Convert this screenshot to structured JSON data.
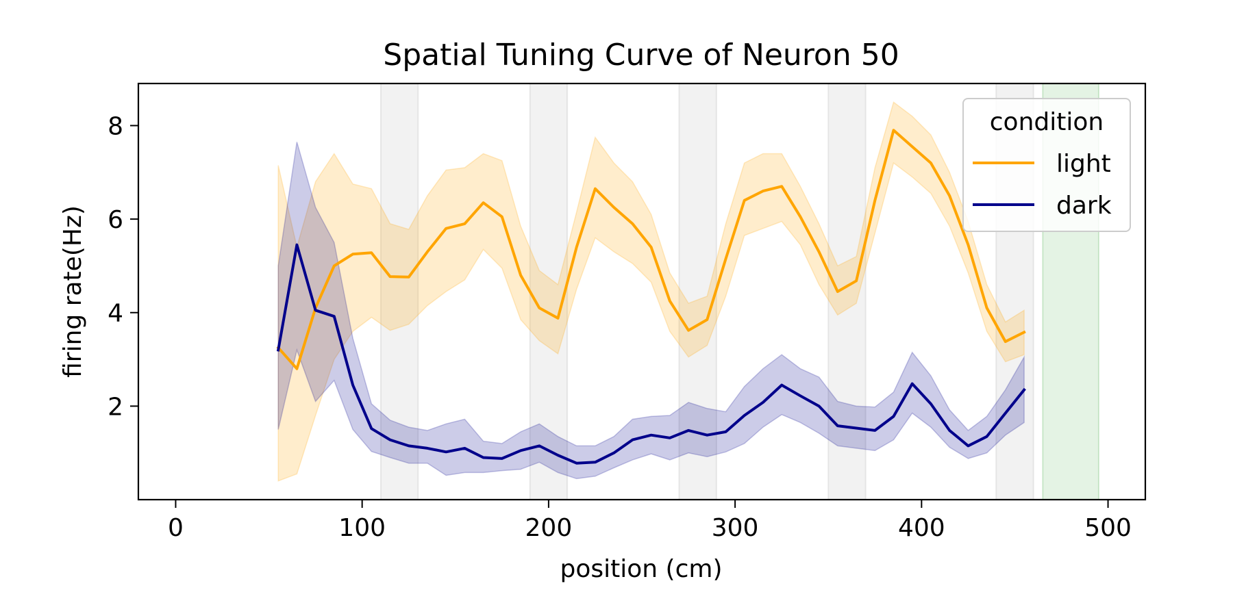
{
  "chart_data": {
    "type": "line",
    "title": "Spatial Tuning Curve of Neuron 50",
    "xlabel": "position (cm)",
    "ylabel": "firing rate(Hz)",
    "xlim": [
      -20,
      520
    ],
    "ylim": [
      0,
      8.9
    ],
    "xticks": [
      0,
      100,
      200,
      300,
      400,
      500
    ],
    "yticks": [
      2,
      4,
      6,
      8
    ],
    "grid": false,
    "legend": {
      "title": "condition",
      "placement": "upper-right"
    },
    "gray_regions": [
      [
        110,
        130
      ],
      [
        190,
        210
      ],
      [
        270,
        290
      ],
      [
        350,
        370
      ],
      [
        440,
        460
      ]
    ],
    "green_region": [
      465,
      495
    ],
    "colors": {
      "light": "#FFA500",
      "dark": "#00008B",
      "gray_region": "#808080",
      "green_region": "#2CA02C"
    },
    "series": [
      {
        "name": "light",
        "x": [
          55,
          65,
          75,
          85,
          95,
          105,
          115,
          125,
          135,
          145,
          155,
          165,
          175,
          185,
          195,
          205,
          215,
          225,
          235,
          245,
          255,
          265,
          275,
          285,
          295,
          305,
          315,
          325,
          335,
          345,
          355,
          365,
          375,
          385,
          395,
          405,
          415,
          425,
          435,
          445,
          455
        ],
        "y": [
          3.25,
          2.8,
          4.1,
          5.0,
          5.25,
          5.28,
          4.77,
          4.76,
          5.3,
          5.8,
          5.9,
          6.35,
          6.05,
          4.8,
          4.1,
          3.88,
          5.4,
          6.65,
          6.25,
          5.9,
          5.4,
          4.25,
          3.62,
          3.85,
          5.15,
          6.4,
          6.6,
          6.7,
          6.05,
          5.3,
          4.45,
          4.68,
          6.4,
          7.9,
          7.55,
          7.2,
          6.5,
          5.45,
          4.1,
          3.38,
          3.58
        ],
        "lower": [
          0.4,
          0.55,
          1.8,
          3.0,
          3.6,
          3.9,
          3.62,
          3.75,
          4.15,
          4.45,
          4.7,
          5.35,
          4.95,
          3.85,
          3.4,
          3.12,
          4.5,
          5.6,
          5.3,
          5.05,
          4.65,
          3.6,
          3.05,
          3.3,
          4.35,
          5.65,
          5.8,
          5.95,
          5.45,
          4.6,
          3.95,
          4.2,
          5.7,
          7.2,
          6.9,
          6.55,
          5.85,
          4.85,
          3.6,
          2.95,
          3.1
        ],
        "upper": [
          7.15,
          5.4,
          6.8,
          7.4,
          6.75,
          6.65,
          5.9,
          5.78,
          6.5,
          7.05,
          7.1,
          7.4,
          7.25,
          5.85,
          4.9,
          4.6,
          6.15,
          7.75,
          7.2,
          6.8,
          6.1,
          4.85,
          4.2,
          4.35,
          5.9,
          7.2,
          7.4,
          7.4,
          6.7,
          5.9,
          5.0,
          5.2,
          7.1,
          8.5,
          8.2,
          7.8,
          7.0,
          5.95,
          4.6,
          3.8,
          4.05
        ]
      },
      {
        "name": "dark",
        "x": [
          55,
          65,
          75,
          85,
          95,
          105,
          115,
          125,
          135,
          145,
          155,
          165,
          175,
          185,
          195,
          205,
          215,
          225,
          235,
          245,
          255,
          265,
          275,
          285,
          295,
          305,
          315,
          325,
          335,
          345,
          355,
          365,
          375,
          385,
          395,
          405,
          415,
          425,
          435,
          445,
          455
        ],
        "y": [
          3.2,
          5.45,
          4.05,
          3.92,
          2.45,
          1.52,
          1.28,
          1.15,
          1.1,
          1.02,
          1.1,
          0.9,
          0.88,
          1.05,
          1.15,
          0.95,
          0.78,
          0.8,
          1.0,
          1.28,
          1.38,
          1.32,
          1.48,
          1.38,
          1.45,
          1.8,
          2.08,
          2.45,
          2.22,
          2.0,
          1.58,
          1.53,
          1.48,
          1.78,
          2.48,
          2.05,
          1.48,
          1.15,
          1.35,
          1.85,
          2.35
        ],
        "lower": [
          1.5,
          3.2,
          2.1,
          2.55,
          1.5,
          1.03,
          0.9,
          0.78,
          0.78,
          0.52,
          0.58,
          0.58,
          0.62,
          0.65,
          0.8,
          0.58,
          0.45,
          0.5,
          0.68,
          0.85,
          0.98,
          0.85,
          1.0,
          0.92,
          1.02,
          1.2,
          1.55,
          1.82,
          1.65,
          1.42,
          1.15,
          1.1,
          1.05,
          1.28,
          1.85,
          1.55,
          1.12,
          0.88,
          1.0,
          1.38,
          1.65
        ],
        "upper": [
          5.0,
          7.65,
          6.25,
          5.5,
          3.45,
          2.05,
          1.7,
          1.55,
          1.48,
          1.62,
          1.72,
          1.25,
          1.2,
          1.45,
          1.62,
          1.35,
          1.15,
          1.15,
          1.35,
          1.72,
          1.78,
          1.8,
          2.08,
          1.95,
          1.88,
          2.42,
          2.8,
          3.1,
          2.8,
          2.62,
          2.1,
          2.0,
          1.98,
          2.3,
          3.15,
          2.65,
          1.92,
          1.48,
          1.78,
          2.35,
          3.05
        ]
      }
    ]
  }
}
